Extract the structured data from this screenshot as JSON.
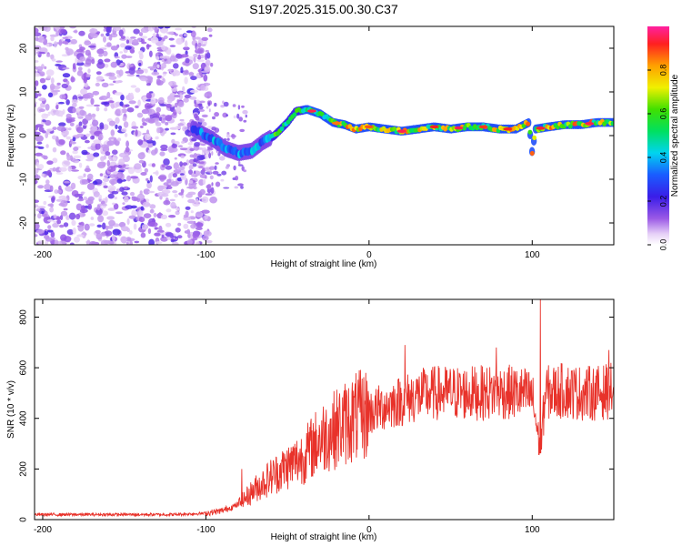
{
  "title": "S197.2025.315.00.30.C37",
  "chart_data": [
    {
      "type": "heatmap",
      "xlabel": "Height of straight line (km)",
      "ylabel": "Frequency (Hz)",
      "xlim": [
        -205,
        150
      ],
      "ylim": [
        -25,
        25
      ],
      "xticks": [
        -200,
        -100,
        0,
        100
      ],
      "yticks": [
        -20,
        -10,
        0,
        10,
        20
      ],
      "colorbar": {
        "label": "Normalized spectral amplitude",
        "range": [
          0,
          1
        ],
        "ticks": [
          "0.0",
          "0.2",
          "0.4",
          "0.6",
          "0.8"
        ]
      },
      "ridge": {
        "description_points_km_hz": [
          [
            -105,
            1
          ],
          [
            -95,
            -1
          ],
          [
            -88,
            -3
          ],
          [
            -80,
            -4
          ],
          [
            -72,
            -3.5
          ],
          [
            -65,
            -1.5
          ],
          [
            -58,
            0
          ],
          [
            -50,
            3
          ],
          [
            -45,
            5.5
          ],
          [
            -38,
            6
          ],
          [
            -30,
            5
          ],
          [
            -22,
            3
          ],
          [
            -15,
            2.5
          ],
          [
            -8,
            1.5
          ],
          [
            0,
            2
          ],
          [
            10,
            1.5
          ],
          [
            20,
            1
          ],
          [
            30,
            1.5
          ],
          [
            40,
            2
          ],
          [
            50,
            1.5
          ],
          [
            60,
            2
          ],
          [
            70,
            2
          ],
          [
            80,
            1.5
          ],
          [
            90,
            1.5
          ],
          [
            98,
            3
          ],
          [
            100,
            -4
          ],
          [
            102,
            1.5
          ],
          [
            110,
            2
          ],
          [
            120,
            2.5
          ],
          [
            130,
            2.5
          ],
          [
            140,
            3
          ],
          [
            150,
            3
          ]
        ]
      }
    },
    {
      "type": "line",
      "xlabel": "Height of straight line (km)",
      "ylabel": "SNR (10 * v/v)",
      "xlim": [
        -205,
        150
      ],
      "ylim": [
        0,
        870
      ],
      "xticks": [
        -200,
        -100,
        0,
        100
      ],
      "yticks": [
        0,
        200,
        400,
        600,
        800
      ],
      "series": [
        {
          "name": "SNR",
          "color": "#e8322a",
          "envelope_km_snr": [
            [
              -205,
              20
            ],
            [
              -120,
              20
            ],
            [
              -100,
              25
            ],
            [
              -90,
              35
            ],
            [
              -80,
              60
            ],
            [
              -70,
              120
            ],
            [
              -60,
              170
            ],
            [
              -50,
              210
            ],
            [
              -40,
              250
            ],
            [
              -30,
              320
            ],
            [
              -20,
              360
            ],
            [
              -10,
              400
            ],
            [
              0,
              420
            ],
            [
              10,
              450
            ],
            [
              20,
              470
            ],
            [
              30,
              490
            ],
            [
              40,
              500
            ],
            [
              50,
              500
            ],
            [
              60,
              500
            ],
            [
              70,
              500
            ],
            [
              80,
              505
            ],
            [
              90,
              500
            ],
            [
              100,
              490
            ],
            [
              105,
              270
            ],
            [
              108,
              500
            ],
            [
              120,
              510
            ],
            [
              130,
              500
            ],
            [
              140,
              500
            ],
            [
              150,
              510
            ]
          ],
          "spikes_km_snr": [
            [
              -78,
              200
            ],
            [
              22,
              690
            ],
            [
              78,
              680
            ],
            [
              105,
              870
            ],
            [
              147,
              670
            ]
          ]
        }
      ]
    }
  ]
}
